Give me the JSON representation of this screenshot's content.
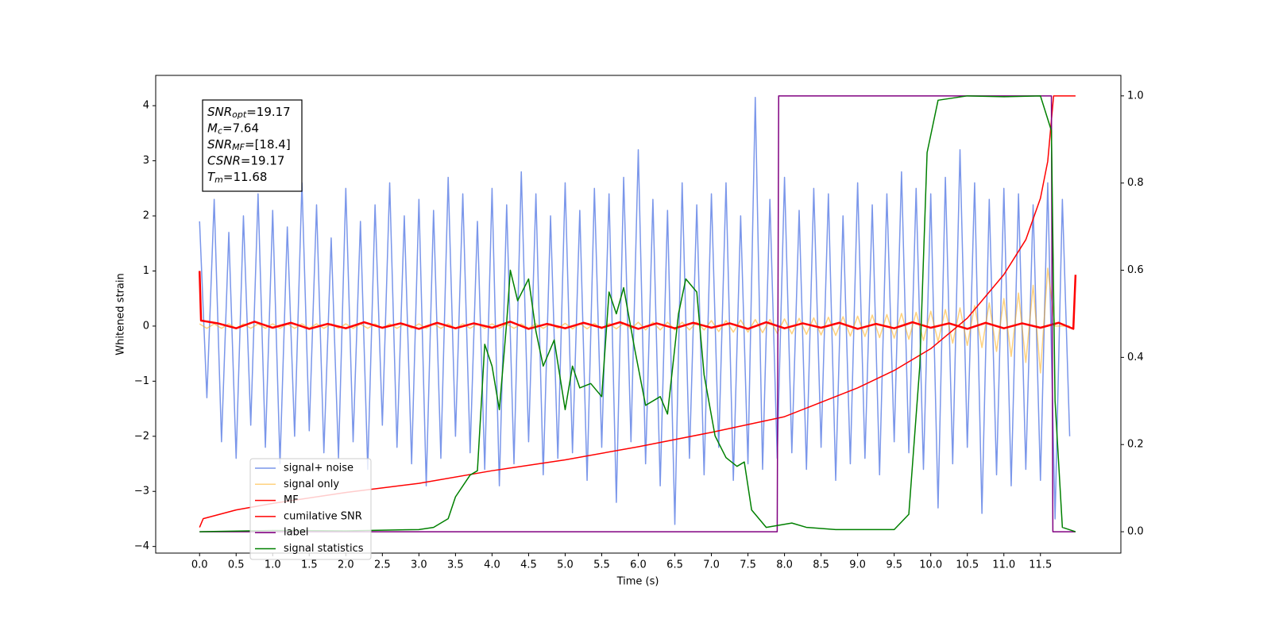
{
  "chart_data": {
    "type": "line",
    "xlabel": "Time (s)",
    "ylabel": "Whitened strain",
    "xlim": [
      -0.6,
      12.6
    ],
    "ylim": [
      -4.12,
      4.55
    ],
    "y2lim": [
      -0.049,
      1.047
    ],
    "xticks": [
      {
        "value": 0,
        "label": "0.0"
      },
      0.5,
      {
        "value": 1,
        "label": "1.0"
      },
      1.5,
      {
        "value": 2,
        "label": "2.0"
      },
      2.5,
      {
        "value": 3,
        "label": "3.0"
      },
      3.5,
      {
        "value": 4,
        "label": "4.0"
      },
      4.5,
      {
        "value": 5,
        "label": "5.0"
      },
      5.5,
      {
        "value": 6,
        "label": "6.0"
      },
      6.5,
      {
        "value": 7,
        "label": "7.0"
      },
      7.5,
      {
        "value": 8,
        "label": "8.0"
      },
      8.5,
      {
        "value": 9,
        "label": "9.0"
      },
      9.5,
      {
        "value": 10,
        "label": "10.0"
      },
      10.5,
      {
        "value": 11,
        "label": "11.0"
      },
      11.5
    ],
    "yticks": [
      {
        "value": -4,
        "label": "−4"
      },
      {
        "value": -3,
        "label": "−3"
      },
      {
        "value": -2,
        "label": "−2"
      },
      {
        "value": -1,
        "label": "−1"
      },
      0,
      1,
      2,
      3,
      4
    ],
    "y2ticks": [
      {
        "value": 0,
        "label": "0.0"
      },
      0.2,
      0.4,
      0.6,
      0.8,
      {
        "value": 1,
        "label": "1.0"
      }
    ],
    "legend": "lower left",
    "annotation": [
      {
        "name": "SNR",
        "sub": "opt",
        "text": "=19.17"
      },
      {
        "name": "M",
        "sub": "c",
        "text": "=7.64"
      },
      {
        "name": "SNR",
        "sub": "MF",
        "text": "=[18.4]"
      },
      {
        "name": "CSNR",
        "text": "=19.17"
      },
      {
        "name": "T",
        "sub": "m",
        "text": "=11.68"
      }
    ],
    "x": [
      0,
      0.1,
      0.2,
      0.3,
      0.4,
      0.5,
      0.6,
      0.7,
      0.8,
      0.9,
      1,
      1.1,
      1.2,
      1.3,
      1.4,
      1.5,
      1.6,
      1.7,
      1.8,
      1.9,
      2,
      2.1,
      2.2,
      2.3,
      2.4,
      2.5,
      2.6,
      2.7,
      2.8,
      2.9,
      3,
      3.1,
      3.2,
      3.3,
      3.4,
      3.5,
      3.6,
      3.7,
      3.8,
      3.9,
      4,
      4.1,
      4.2,
      4.3,
      4.4,
      4.5,
      4.6,
      4.7,
      4.8,
      4.9,
      5,
      5.1,
      5.2,
      5.3,
      5.4,
      5.5,
      5.6,
      5.7,
      5.8,
      5.9,
      6,
      6.1,
      6.2,
      6.3,
      6.4,
      6.5,
      6.6,
      6.7,
      6.8,
      6.9,
      7,
      7.1,
      7.2,
      7.3,
      7.4,
      7.5,
      7.6,
      7.7,
      7.8,
      7.9,
      8,
      8.1,
      8.2,
      8.3,
      8.4,
      8.5,
      8.6,
      8.7,
      8.8,
      8.9,
      9,
      9.1,
      9.2,
      9.3,
      9.4,
      9.5,
      9.6,
      9.7,
      9.8,
      9.9,
      10,
      10.1,
      10.2,
      10.3,
      10.4,
      10.5,
      10.6,
      10.7,
      10.8,
      10.9,
      11,
      11.1,
      11.2,
      11.3,
      11.4,
      11.5,
      11.6,
      11.7,
      11.8,
      11.9
    ],
    "series": [
      {
        "name": "signal+ noise",
        "color": "#4169e1",
        "alpha": 0.7,
        "width": 1.5,
        "values": [
          1.9,
          -1.3,
          2.3,
          -2.1,
          1.7,
          -2.4,
          2.0,
          -1.8,
          2.4,
          -2.2,
          2.1,
          -2.5,
          1.8,
          -2.0,
          2.6,
          -1.9,
          2.2,
          -2.3,
          1.6,
          -2.4,
          2.5,
          -2.1,
          1.9,
          -2.6,
          2.2,
          -1.8,
          2.6,
          -2.2,
          2.0,
          -2.5,
          2.3,
          -2.9,
          2.1,
          -2.4,
          2.7,
          -2.0,
          2.4,
          -2.3,
          1.9,
          -2.6,
          2.5,
          -2.9,
          2.2,
          -2.5,
          2.8,
          -2.1,
          2.4,
          -2.7,
          2.0,
          -2.4,
          2.6,
          -2.3,
          2.1,
          -2.8,
          2.5,
          -2.2,
          2.4,
          -3.2,
          2.7,
          -2.1,
          3.2,
          -2.5,
          2.3,
          -2.9,
          2.1,
          -3.6,
          2.6,
          -2.4,
          2.2,
          -2.7,
          2.4,
          -2.2,
          2.6,
          -2.8,
          2.0,
          -2.5,
          4.15,
          -2.6,
          2.3,
          -2.4,
          2.7,
          -2.3,
          2.1,
          -2.6,
          2.5,
          -2.2,
          2.4,
          -2.8,
          2.0,
          -2.5,
          2.6,
          -2.4,
          2.2,
          -2.7,
          2.4,
          -2.1,
          2.8,
          -2.3,
          2.5,
          -2.6,
          2.4,
          -3.3,
          2.7,
          -2.5,
          3.2,
          -2.2,
          2.6,
          -3.4,
          2.3,
          -2.7,
          2.5,
          -2.9,
          2.4,
          -2.6,
          2.2,
          -2.8,
          2.6,
          -3.5,
          2.3,
          -2.0
        ]
      },
      {
        "name": "signal only",
        "color": "#ffa500",
        "alpha": 0.5,
        "width": 1.5,
        "values": [
          0.04,
          -0.04,
          0.04,
          -0.04,
          0.04,
          -0.04,
          0.04,
          -0.04,
          0.04,
          -0.04,
          0.04,
          -0.04,
          0.04,
          -0.04,
          0.04,
          -0.04,
          0.04,
          -0.04,
          0.04,
          -0.04,
          0.04,
          -0.04,
          0.04,
          -0.04,
          0.04,
          -0.04,
          0.04,
          -0.04,
          0.04,
          -0.04,
          0.04,
          -0.04,
          0.04,
          -0.04,
          0.04,
          -0.04,
          0.04,
          -0.04,
          0.04,
          -0.04,
          0.04,
          -0.04,
          0.04,
          -0.04,
          0.04,
          -0.04,
          0.04,
          -0.04,
          0.04,
          -0.04,
          0.05,
          -0.05,
          0.05,
          -0.05,
          0.05,
          -0.05,
          0.05,
          -0.05,
          0.05,
          -0.05,
          0.07,
          -0.07,
          0.07,
          -0.07,
          0.07,
          -0.07,
          0.07,
          -0.07,
          0.07,
          -0.07,
          0.1,
          -0.1,
          0.1,
          -0.11,
          0.11,
          -0.11,
          0.12,
          -0.12,
          0.12,
          -0.13,
          0.13,
          -0.14,
          0.14,
          -0.15,
          0.15,
          -0.16,
          0.16,
          -0.17,
          0.17,
          -0.18,
          0.18,
          -0.19,
          0.2,
          -0.21,
          0.21,
          -0.22,
          0.23,
          -0.24,
          0.25,
          -0.26,
          0.27,
          -0.28,
          0.3,
          -0.31,
          0.33,
          -0.35,
          0.37,
          -0.39,
          0.42,
          -0.46,
          0.5,
          -0.55,
          0.6,
          -0.66,
          0.74,
          -0.85,
          1.05,
          0,
          0,
          0
        ]
      },
      {
        "name": "MF",
        "color": "#ff0000",
        "width": 2.5,
        "x": [
          0,
          0.02,
          0.25,
          0.5,
          0.75,
          1,
          1.25,
          1.5,
          1.75,
          2,
          2.25,
          2.5,
          2.75,
          3,
          3.25,
          3.5,
          3.75,
          4,
          4.25,
          4.5,
          4.75,
          5,
          5.25,
          5.5,
          5.75,
          6,
          6.25,
          6.5,
          6.75,
          7,
          7.25,
          7.5,
          7.75,
          8,
          8.25,
          8.5,
          8.75,
          9,
          9.25,
          9.5,
          9.75,
          10,
          10.25,
          10.5,
          10.75,
          11,
          11.25,
          11.5,
          11.75,
          11.95,
          11.98
        ],
        "values": [
          1.0,
          0.1,
          0.05,
          -0.04,
          0.08,
          -0.03,
          0.06,
          -0.05,
          0.04,
          -0.04,
          0.07,
          -0.03,
          0.05,
          -0.05,
          0.06,
          -0.04,
          0.05,
          -0.03,
          0.08,
          -0.05,
          0.04,
          -0.04,
          0.06,
          -0.03,
          0.07,
          -0.05,
          0.05,
          -0.04,
          0.06,
          -0.03,
          0.05,
          -0.05,
          0.07,
          -0.04,
          0.05,
          -0.03,
          0.06,
          -0.05,
          0.04,
          -0.04,
          0.07,
          -0.03,
          0.05,
          -0.05,
          0.06,
          -0.04,
          0.05,
          -0.03,
          0.06,
          -0.05,
          0.93
        ]
      },
      {
        "name": "cumilative SNR",
        "color": "#ff0000",
        "width": 1.5,
        "axis": "y2",
        "x": [
          0,
          0.05,
          0.5,
          1,
          2,
          3,
          4,
          5,
          6,
          7,
          8,
          9,
          9.5,
          10,
          10.5,
          11,
          11.3,
          11.5,
          11.6,
          11.68,
          11.98
        ],
        "values": [
          0.01,
          0.03,
          0.05,
          0.065,
          0.09,
          0.111,
          0.14,
          0.165,
          0.195,
          0.228,
          0.264,
          0.33,
          0.37,
          0.42,
          0.49,
          0.59,
          0.67,
          0.765,
          0.85,
          1.0,
          1.0
        ]
      },
      {
        "name": "label",
        "color": "#800080",
        "width": 1.5,
        "axis": "y2",
        "x": [
          0,
          7.9,
          7.92,
          11.65,
          11.67,
          11.98
        ],
        "values": [
          0,
          0,
          1,
          1,
          0,
          0
        ]
      },
      {
        "name": "signal statistics",
        "color": "#008000",
        "width": 1.5,
        "axis": "y2",
        "x": [
          0,
          1,
          2,
          3,
          3.2,
          3.4,
          3.5,
          3.7,
          3.8,
          3.9,
          4.0,
          4.1,
          4.2,
          4.25,
          4.35,
          4.5,
          4.6,
          4.7,
          4.85,
          5.0,
          5.1,
          5.2,
          5.35,
          5.5,
          5.6,
          5.7,
          5.8,
          5.95,
          6.1,
          6.3,
          6.4,
          6.55,
          6.65,
          6.8,
          6.9,
          7.05,
          7.2,
          7.35,
          7.45,
          7.55,
          7.75,
          8.1,
          8.3,
          8.7,
          9.5,
          9.7,
          9.85,
          9.95,
          10.1,
          10.5,
          11.0,
          11.5,
          11.65,
          11.7,
          11.8,
          11.98
        ],
        "values": [
          0,
          0.003,
          0.002,
          0.005,
          0.01,
          0.03,
          0.08,
          0.13,
          0.14,
          0.43,
          0.38,
          0.28,
          0.48,
          0.6,
          0.53,
          0.58,
          0.46,
          0.38,
          0.44,
          0.28,
          0.38,
          0.33,
          0.34,
          0.31,
          0.55,
          0.5,
          0.56,
          0.42,
          0.29,
          0.31,
          0.27,
          0.5,
          0.58,
          0.55,
          0.36,
          0.22,
          0.17,
          0.15,
          0.16,
          0.05,
          0.01,
          0.02,
          0.01,
          0.005,
          0.005,
          0.04,
          0.38,
          0.87,
          0.99,
          1.0,
          0.998,
          1.0,
          0.92,
          0.3,
          0.01,
          0
        ]
      }
    ]
  }
}
